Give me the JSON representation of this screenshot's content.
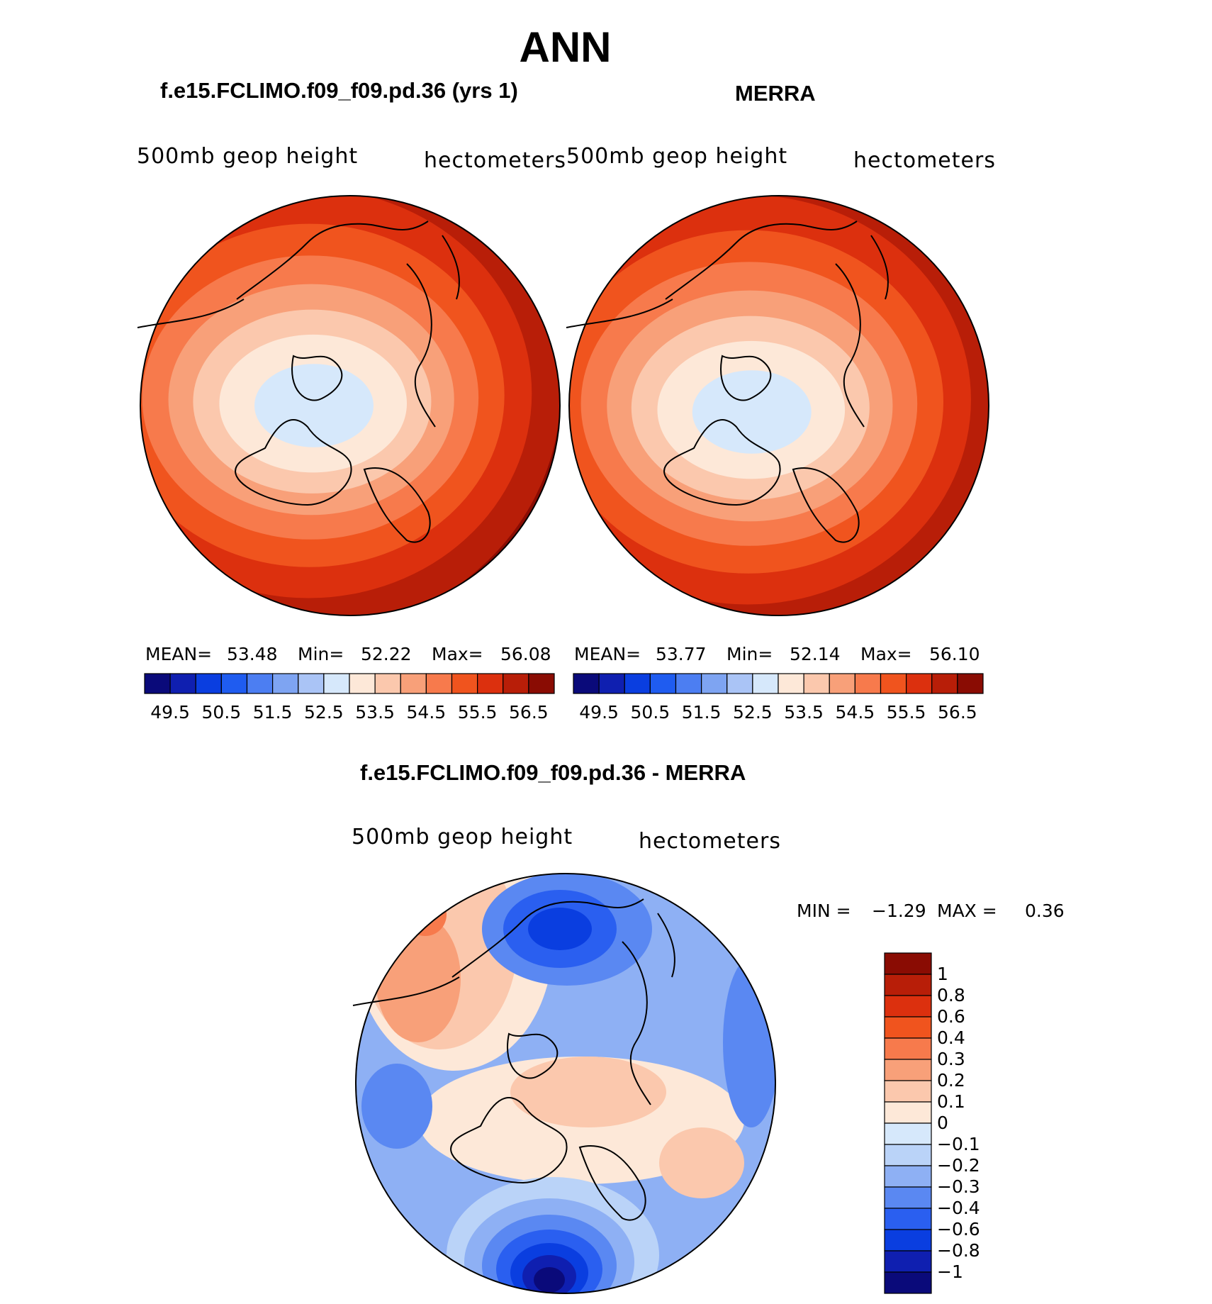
{
  "page": {
    "title": "ANN",
    "difference_title": "f.e15.FCLIMO.f09_f09.pd.36 - MERRA"
  },
  "colors": {
    "diverging_17": [
      "#0a0a7a",
      "#0f1fb0",
      "#0a3ee0",
      "#1f5cf0",
      "#4c7ef2",
      "#7ea4f2",
      "#aac4f6",
      "#d6e8fb",
      "#fde8d8",
      "#fbc8ad",
      "#f8a079",
      "#f77a4c",
      "#f0541e",
      "#dc300e",
      "#b81e08",
      "#8a0c03"
    ],
    "diff_13": [
      "#0a0a7a",
      "#0f1fb0",
      "#0a3ee0",
      "#2a5ff0",
      "#5a88f2",
      "#8eb0f4",
      "#bad3f8",
      "#d6e8fb",
      "#fde8d8",
      "#fbc8ad",
      "#f8a079",
      "#f77a4c",
      "#f0541e",
      "#dc300e",
      "#b81e08",
      "#8a0c03"
    ]
  },
  "chart_data": [
    {
      "type": "heatmap",
      "projection": "north polar stereographic",
      "case": "f.e15.FCLIMO.f09_f09.pd.36 (yrs 1)",
      "variable": "500mb geop height",
      "units": "hectometers",
      "stats": {
        "mean_label": "MEAN=",
        "mean": "53.48",
        "min_label": "Min=",
        "min": "52.22",
        "max_label": "Max=",
        "max": "56.08"
      },
      "levels": [
        49.5,
        49.75,
        50.0,
        50.25,
        50.5,
        51.0,
        51.5,
        52.0,
        52.5,
        53.0,
        53.5,
        54.0,
        54.5,
        55.0,
        55.5,
        56.0,
        56.5,
        57.0
      ],
      "colorbar_labels": [
        "49.5",
        "50.5",
        "51.5",
        "52.5",
        "53.5",
        "54.5",
        "55.5",
        "56.5"
      ],
      "center_offset": [
        0.0,
        0.0
      ]
    },
    {
      "type": "heatmap",
      "projection": "north polar stereographic",
      "case": "MERRA",
      "variable": "500mb geop height",
      "units": "hectometers",
      "stats": {
        "mean_label": "MEAN=",
        "mean": "53.77",
        "min_label": "Min=",
        "min": "52.14",
        "max_label": "Max=",
        "max": "56.10"
      },
      "colorbar_labels": [
        "49.5",
        "50.5",
        "51.5",
        "52.5",
        "53.5",
        "54.5",
        "55.5",
        "56.5"
      ],
      "center_offset": [
        0.05,
        0.03
      ]
    },
    {
      "type": "heatmap",
      "projection": "north polar stereographic",
      "case": "f.e15.FCLIMO.f09_f09.pd.36 - MERRA",
      "variable": "500mb geop height",
      "units": "hectometers",
      "stats": {
        "min_label": "MIN =",
        "min": "−1.29",
        "max_label": "MAX =",
        "max": "0.36"
      },
      "colorbar_labels": [
        "1",
        "0.8",
        "0.6",
        "0.4",
        "0.3",
        "0.2",
        "0.1",
        "0",
        "−0.1",
        "−0.2",
        "−0.3",
        "−0.4",
        "−0.6",
        "−0.8",
        "−1"
      ]
    }
  ]
}
